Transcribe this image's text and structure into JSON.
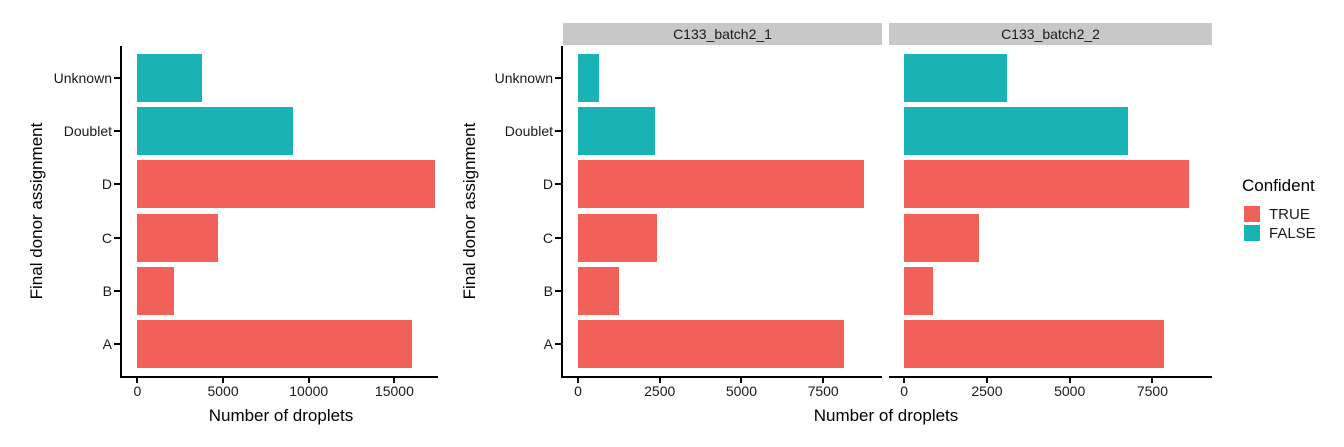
{
  "figure": {
    "background": "#ffffff"
  },
  "palette": {
    "confident_true": "#F2605A",
    "confident_false": "#19B3B5",
    "strip_background": "#C8C8C8",
    "axis": "#000000"
  },
  "legend": {
    "title": "Confident",
    "position": "right",
    "items": [
      {
        "label": "TRUE",
        "color": "#F2605A"
      },
      {
        "label": "FALSE",
        "color": "#19B3B5"
      }
    ]
  },
  "chart_data": [
    {
      "type": "bar",
      "orientation": "horizontal",
      "title": "",
      "ylabel": "Final donor assignment",
      "xlabel": "Number of droplets",
      "categories_top_to_bottom": [
        "Unknown",
        "Doublet",
        "D",
        "C",
        "B",
        "A"
      ],
      "values": [
        3750,
        9100,
        17350,
        4700,
        2130,
        16000
      ],
      "confident": [
        false,
        false,
        true,
        true,
        true,
        true
      ],
      "x_ticks": [
        0,
        5000,
        10000,
        15000
      ],
      "xlim": [
        0,
        17545
      ],
      "grid": false,
      "legend_position": "none"
    },
    {
      "type": "bar",
      "orientation": "horizontal",
      "title": "",
      "ylabel": "Final donor assignment",
      "xlabel": "Number of droplets",
      "categories_top_to_bottom": [
        "Unknown",
        "Doublet",
        "D",
        "C",
        "B",
        "A"
      ],
      "confident": [
        false,
        false,
        true,
        true,
        true,
        true
      ],
      "facets": [
        {
          "label": "C133_batch2_1",
          "values": [
            650,
            2350,
            8750,
            2430,
            1260,
            8150
          ]
        },
        {
          "label": "C133_batch2_2",
          "values": [
            3100,
            6750,
            8600,
            2270,
            870,
            7850
          ]
        }
      ],
      "x_ticks": [
        0,
        2500,
        5000,
        7500
      ],
      "xlim": [
        0,
        9300
      ],
      "grid": false,
      "legend_position": "right"
    }
  ]
}
